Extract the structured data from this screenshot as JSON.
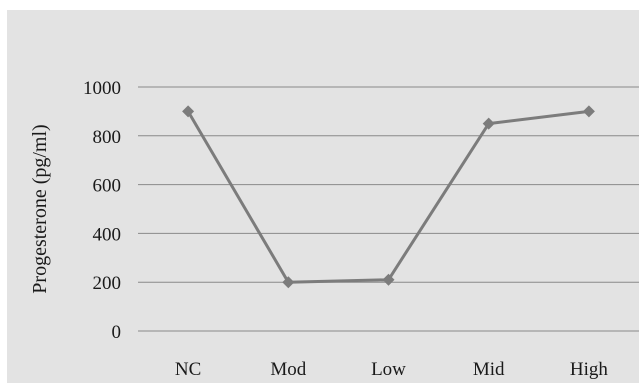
{
  "chart_data": {
    "type": "line",
    "categories": [
      "NC",
      "Mod",
      "Low",
      "Mid",
      "High"
    ],
    "series": [
      {
        "values": [
          900,
          200,
          210,
          850,
          900
        ]
      }
    ],
    "title": "",
    "xlabel": "",
    "ylabel": "Progesterone (pg/ml)",
    "ylim": [
      0,
      1000
    ],
    "yticks": [
      0,
      200,
      400,
      600,
      800,
      1000
    ],
    "grid": true,
    "legend": "none",
    "colors": {
      "background": "#e3e3e3",
      "line": "#7c7c7c",
      "marker": "#7c7c7c",
      "gridline": "#8a8a8a"
    },
    "marker": "diamond"
  }
}
